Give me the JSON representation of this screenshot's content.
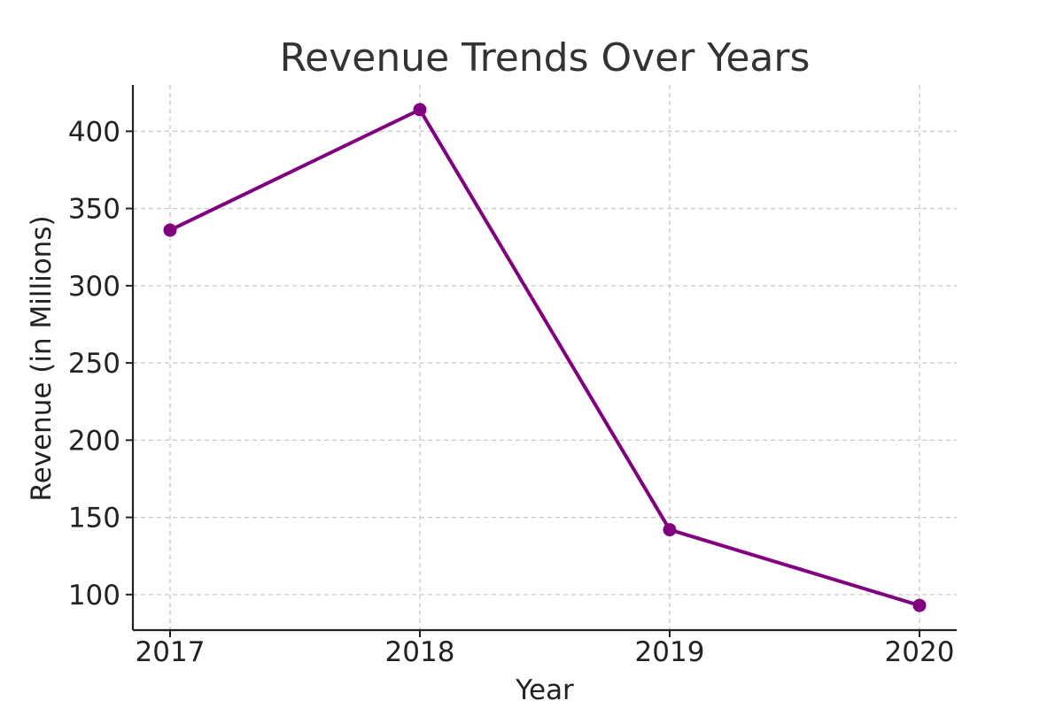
{
  "chart_data": {
    "type": "line",
    "title": "Revenue Trends Over Years",
    "xlabel": "Year",
    "ylabel": "Revenue (in Millions)",
    "categories": [
      "2017",
      "2018",
      "2019",
      "2020"
    ],
    "series": [
      {
        "values": [
          336,
          414,
          142,
          93
        ],
        "color": "#800080"
      }
    ],
    "ylim": [
      77,
      430
    ],
    "yticks": [
      100,
      150,
      200,
      250,
      300,
      350,
      400
    ],
    "grid": true,
    "markers": true,
    "legend": "none"
  }
}
